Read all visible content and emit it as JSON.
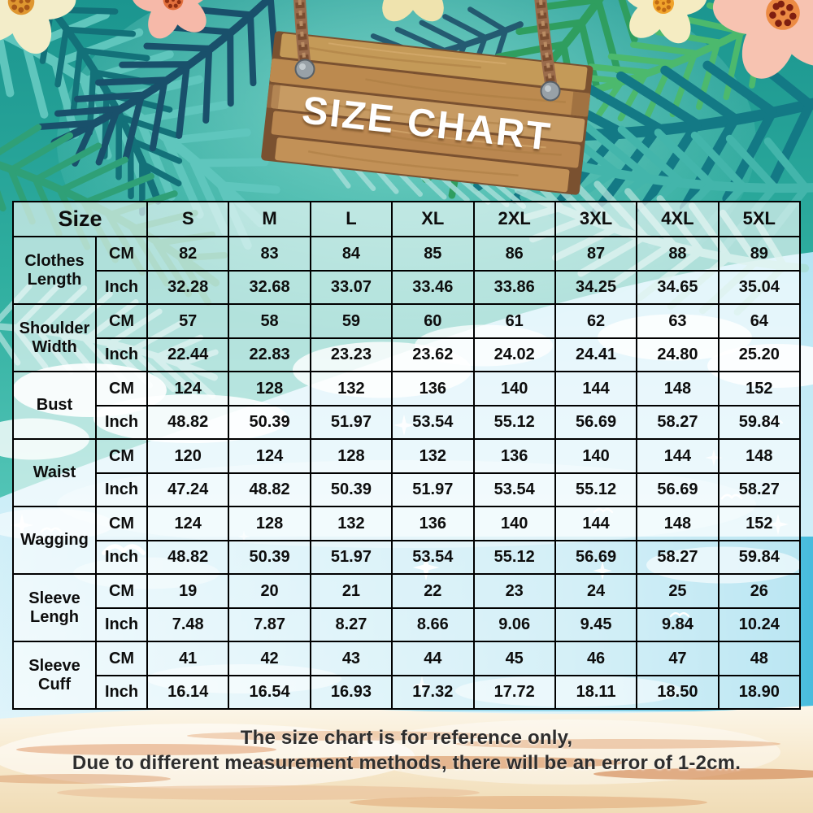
{
  "sign": {
    "title": "SIZE CHART"
  },
  "table": {
    "corner_label": "Size",
    "size_headers": [
      "S",
      "M",
      "L",
      "XL",
      "2XL",
      "3XL",
      "4XL",
      "5XL"
    ],
    "unit_labels": {
      "cm": "CM",
      "inch": "Inch"
    },
    "rows": [
      {
        "label": "Clothes Length",
        "cm": [
          "82",
          "83",
          "84",
          "85",
          "86",
          "87",
          "88",
          "89"
        ],
        "inch": [
          "32.28",
          "32.68",
          "33.07",
          "33.46",
          "33.86",
          "34.25",
          "34.65",
          "35.04"
        ]
      },
      {
        "label": "Shoulder Width",
        "cm": [
          "57",
          "58",
          "59",
          "60",
          "61",
          "62",
          "63",
          "64"
        ],
        "inch": [
          "22.44",
          "22.83",
          "23.23",
          "23.62",
          "24.02",
          "24.41",
          "24.80",
          "25.20"
        ]
      },
      {
        "label": "Bust",
        "cm": [
          "124",
          "128",
          "132",
          "136",
          "140",
          "144",
          "148",
          "152"
        ],
        "inch": [
          "48.82",
          "50.39",
          "51.97",
          "53.54",
          "55.12",
          "56.69",
          "58.27",
          "59.84"
        ]
      },
      {
        "label": "Waist",
        "cm": [
          "120",
          "124",
          "128",
          "132",
          "136",
          "140",
          "144",
          "148"
        ],
        "inch": [
          "47.24",
          "48.82",
          "50.39",
          "51.97",
          "53.54",
          "55.12",
          "56.69",
          "58.27"
        ]
      },
      {
        "label": "Wagging",
        "cm": [
          "124",
          "128",
          "132",
          "136",
          "140",
          "144",
          "148",
          "152"
        ],
        "inch": [
          "48.82",
          "50.39",
          "51.97",
          "53.54",
          "55.12",
          "56.69",
          "58.27",
          "59.84"
        ]
      },
      {
        "label": "Sleeve Lengh",
        "cm": [
          "19",
          "20",
          "21",
          "22",
          "23",
          "24",
          "25",
          "26"
        ],
        "inch": [
          "7.48",
          "7.87",
          "8.27",
          "8.66",
          "9.06",
          "9.45",
          "9.84",
          "10.24"
        ]
      },
      {
        "label": "Sleeve Cuff",
        "cm": [
          "41",
          "42",
          "43",
          "44",
          "45",
          "46",
          "47",
          "48"
        ],
        "inch": [
          "16.14",
          "16.54",
          "16.93",
          "17.32",
          "17.72",
          "18.11",
          "18.50",
          "18.90"
        ]
      }
    ]
  },
  "footer": {
    "line1": "The size chart is for reference only,",
    "line2": "Due to different measurement methods, there will be an error of 1-2cm."
  },
  "colors": {
    "water_teal": "#2fae9f",
    "sky_blue": "#c2eaf6",
    "sand": "#f7e9cd",
    "wood_brown": "#c08d55",
    "rope_brown": "#9a6b4b",
    "table_border": "#000000",
    "title_text": "#ffffff",
    "body_text": "#0d0d0d"
  }
}
